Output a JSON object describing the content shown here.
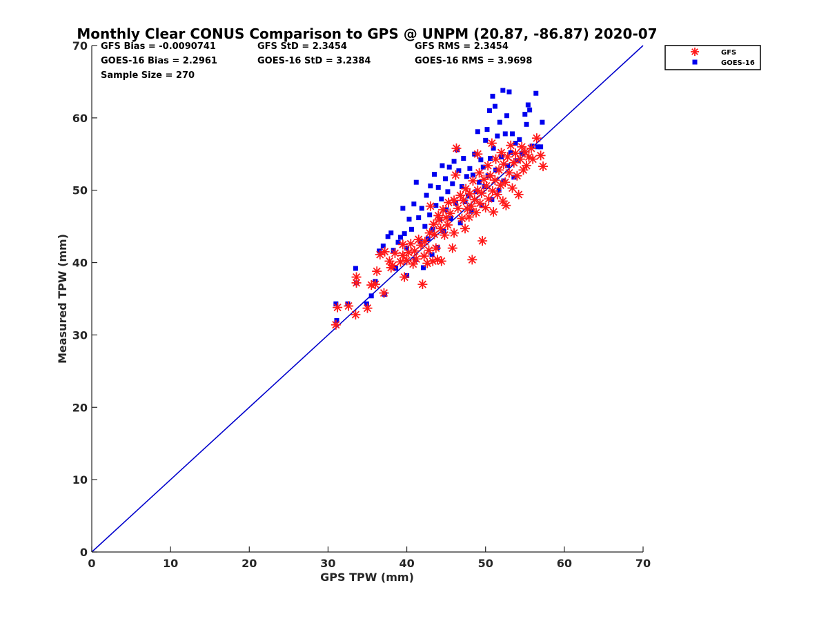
{
  "chart_data": {
    "type": "scatter",
    "title": "Monthly Clear CONUS Comparison to GPS @ UNPM (20.87, -86.87) 2020-07",
    "xlabel": "GPS TPW (mm)",
    "ylabel": "Measured TPW (mm)",
    "xlim": [
      0,
      70
    ],
    "ylim": [
      0,
      70
    ],
    "xticks": [
      "0",
      "10",
      "20",
      "30",
      "40",
      "50",
      "60",
      "70"
    ],
    "yticks": [
      "0",
      "10",
      "20",
      "30",
      "40",
      "50",
      "60",
      "70"
    ],
    "grid": false,
    "legend_position": "top-right",
    "stats": {
      "gfs_bias": "GFS Bias = -0.0090741",
      "gfs_std": "GFS StD = 2.3454",
      "gfs_rms": "GFS RMS = 2.3454",
      "goes_bias": "GOES-16 Bias = 2.2961",
      "goes_std": "GOES-16 StD = 3.2384",
      "goes_rms": "GOES-16 RMS = 3.9698",
      "sample_size": "Sample Size = 270"
    },
    "reference_line": {
      "x": [
        0,
        70
      ],
      "y": [
        0,
        70
      ],
      "color": "#0000cc"
    },
    "series": [
      {
        "name": "GFS",
        "marker": "asterisk",
        "color": "#ff1a1a",
        "points": [
          [
            31.0,
            31.4
          ],
          [
            31.2,
            33.8
          ],
          [
            32.6,
            34.0
          ],
          [
            33.5,
            32.8
          ],
          [
            33.6,
            37.2
          ],
          [
            33.6,
            38.0
          ],
          [
            35.0,
            33.7
          ],
          [
            35.5,
            36.9
          ],
          [
            36.0,
            37.0
          ],
          [
            36.2,
            38.8
          ],
          [
            36.6,
            41.1
          ],
          [
            37.1,
            35.8
          ],
          [
            37.2,
            41.5
          ],
          [
            37.8,
            40.2
          ],
          [
            38.0,
            39.3
          ],
          [
            38.2,
            39.6
          ],
          [
            38.5,
            41.3
          ],
          [
            39.2,
            40.1
          ],
          [
            39.5,
            41.0
          ],
          [
            39.5,
            42.5
          ],
          [
            39.7,
            38.0
          ],
          [
            40.0,
            40.3
          ],
          [
            40.2,
            41.4
          ],
          [
            40.5,
            42.6
          ],
          [
            40.8,
            39.8
          ],
          [
            41.0,
            41.6
          ],
          [
            41.2,
            40.5
          ],
          [
            41.5,
            43.2
          ],
          [
            41.8,
            42.4
          ],
          [
            42.0,
            37.0
          ],
          [
            42.2,
            40.9
          ],
          [
            42.3,
            42.9
          ],
          [
            42.6,
            39.9
          ],
          [
            42.8,
            41.7
          ],
          [
            42.9,
            44.1
          ],
          [
            43.0,
            47.8
          ],
          [
            43.3,
            40.2
          ],
          [
            43.4,
            45.3
          ],
          [
            43.5,
            43.9
          ],
          [
            43.7,
            42.0
          ],
          [
            43.9,
            40.4
          ],
          [
            44.0,
            46.5
          ],
          [
            44.1,
            45.9
          ],
          [
            44.3,
            44.7
          ],
          [
            44.4,
            40.2
          ],
          [
            44.6,
            47.3
          ],
          [
            44.8,
            43.8
          ],
          [
            45.0,
            46.2
          ],
          [
            45.2,
            45.2
          ],
          [
            45.3,
            48.3
          ],
          [
            45.5,
            46.8
          ],
          [
            45.8,
            42.0
          ],
          [
            46.0,
            44.1
          ],
          [
            46.0,
            48.6
          ],
          [
            46.2,
            52.1
          ],
          [
            46.3,
            55.8
          ],
          [
            46.5,
            47.5
          ],
          [
            46.8,
            49.3
          ],
          [
            47.0,
            46.1
          ],
          [
            47.2,
            48.6
          ],
          [
            47.4,
            44.7
          ],
          [
            47.5,
            50.2
          ],
          [
            47.7,
            47.4
          ],
          [
            47.9,
            46.3
          ],
          [
            48.0,
            49.5
          ],
          [
            48.2,
            47.8
          ],
          [
            48.3,
            40.4
          ],
          [
            48.4,
            51.3
          ],
          [
            48.6,
            48.7
          ],
          [
            48.8,
            46.9
          ],
          [
            49.0,
            50.0
          ],
          [
            49.0,
            55.0
          ],
          [
            49.2,
            52.4
          ],
          [
            49.3,
            48.2
          ],
          [
            49.5,
            49.6
          ],
          [
            49.6,
            43.0
          ],
          [
            49.8,
            51.5
          ],
          [
            50.0,
            47.6
          ],
          [
            50.1,
            50.6
          ],
          [
            50.3,
            53.4
          ],
          [
            50.4,
            48.8
          ],
          [
            50.6,
            52.0
          ],
          [
            50.8,
            56.5
          ],
          [
            50.9,
            49.9
          ],
          [
            51.0,
            47.0
          ],
          [
            51.2,
            51.4
          ],
          [
            51.3,
            54.3
          ],
          [
            51.5,
            49.4
          ],
          [
            51.7,
            52.8
          ],
          [
            51.9,
            50.7
          ],
          [
            52.0,
            55.2
          ],
          [
            52.2,
            48.5
          ],
          [
            52.3,
            53.6
          ],
          [
            52.5,
            51.1
          ],
          [
            52.6,
            47.9
          ],
          [
            52.8,
            54.6
          ],
          [
            53.0,
            52.4
          ],
          [
            53.2,
            56.2
          ],
          [
            53.4,
            50.3
          ],
          [
            53.6,
            53.8
          ],
          [
            53.8,
            55.1
          ],
          [
            54.0,
            52.0
          ],
          [
            54.2,
            49.4
          ],
          [
            54.4,
            54.3
          ],
          [
            54.6,
            56.0
          ],
          [
            54.8,
            52.8
          ],
          [
            55.0,
            55.3
          ],
          [
            55.2,
            53.4
          ],
          [
            55.5,
            54.6
          ],
          [
            55.8,
            55.8
          ],
          [
            56.0,
            54.3
          ],
          [
            56.5,
            57.2
          ],
          [
            57.0,
            54.8
          ],
          [
            57.3,
            53.3
          ]
        ]
      },
      {
        "name": "GOES-16",
        "marker": "square",
        "color": "#0000ee",
        "points": [
          [
            31.0,
            34.3
          ],
          [
            31.1,
            32.0
          ],
          [
            32.5,
            34.3
          ],
          [
            33.5,
            39.2
          ],
          [
            33.6,
            37.2
          ],
          [
            34.9,
            34.3
          ],
          [
            35.5,
            35.4
          ],
          [
            36.0,
            37.4
          ],
          [
            36.5,
            41.6
          ],
          [
            37.0,
            42.3
          ],
          [
            37.2,
            35.6
          ],
          [
            37.6,
            43.6
          ],
          [
            38.0,
            44.1
          ],
          [
            38.3,
            41.7
          ],
          [
            38.6,
            39.2
          ],
          [
            38.9,
            42.8
          ],
          [
            39.2,
            43.5
          ],
          [
            39.5,
            47.5
          ],
          [
            39.7,
            44.0
          ],
          [
            40.0,
            38.2
          ],
          [
            40.0,
            42.0
          ],
          [
            40.3,
            46.0
          ],
          [
            40.6,
            44.6
          ],
          [
            40.9,
            48.1
          ],
          [
            41.1,
            40.4
          ],
          [
            41.2,
            51.1
          ],
          [
            41.5,
            46.2
          ],
          [
            41.7,
            42.9
          ],
          [
            41.9,
            47.5
          ],
          [
            42.1,
            39.3
          ],
          [
            42.3,
            45.0
          ],
          [
            42.5,
            49.3
          ],
          [
            42.7,
            43.3
          ],
          [
            42.9,
            46.6
          ],
          [
            43.0,
            50.6
          ],
          [
            43.2,
            41.1
          ],
          [
            43.3,
            44.6
          ],
          [
            43.5,
            52.2
          ],
          [
            43.7,
            47.9
          ],
          [
            43.9,
            42.1
          ],
          [
            44.0,
            50.4
          ],
          [
            44.2,
            46.0
          ],
          [
            44.4,
            48.8
          ],
          [
            44.5,
            53.4
          ],
          [
            44.7,
            44.3
          ],
          [
            44.9,
            51.6
          ],
          [
            45.0,
            47.3
          ],
          [
            45.2,
            49.8
          ],
          [
            45.4,
            53.2
          ],
          [
            45.6,
            46.1
          ],
          [
            45.8,
            50.9
          ],
          [
            46.0,
            54.0
          ],
          [
            46.2,
            48.2
          ],
          [
            46.4,
            55.6
          ],
          [
            46.6,
            52.7
          ],
          [
            46.8,
            45.5
          ],
          [
            47.0,
            50.5
          ],
          [
            47.2,
            54.4
          ],
          [
            47.4,
            48.4
          ],
          [
            47.6,
            51.9
          ],
          [
            47.8,
            49.2
          ],
          [
            48.0,
            53.0
          ],
          [
            48.2,
            47.1
          ],
          [
            48.4,
            52.1
          ],
          [
            48.6,
            55.0
          ],
          [
            48.8,
            49.8
          ],
          [
            49.0,
            58.1
          ],
          [
            49.2,
            51.1
          ],
          [
            49.4,
            54.2
          ],
          [
            49.5,
            47.9
          ],
          [
            49.7,
            53.2
          ],
          [
            49.9,
            50.5
          ],
          [
            50.0,
            56.9
          ],
          [
            50.2,
            58.4
          ],
          [
            50.3,
            52.0
          ],
          [
            50.5,
            61.0
          ],
          [
            50.6,
            54.4
          ],
          [
            50.8,
            48.7
          ],
          [
            50.9,
            63.0
          ],
          [
            51.0,
            55.8
          ],
          [
            51.2,
            61.6
          ],
          [
            51.3,
            52.8
          ],
          [
            51.5,
            57.5
          ],
          [
            51.7,
            50.0
          ],
          [
            51.8,
            59.4
          ],
          [
            52.0,
            54.6
          ],
          [
            52.2,
            63.8
          ],
          [
            52.3,
            51.3
          ],
          [
            52.5,
            57.8
          ],
          [
            52.7,
            60.3
          ],
          [
            52.8,
            53.4
          ],
          [
            53.0,
            63.6
          ],
          [
            53.2,
            55.2
          ],
          [
            53.4,
            57.8
          ],
          [
            53.6,
            51.8
          ],
          [
            53.8,
            56.5
          ],
          [
            54.0,
            54.1
          ],
          [
            54.3,
            57.0
          ],
          [
            54.6,
            55.1
          ],
          [
            55.0,
            60.5
          ],
          [
            55.2,
            59.1
          ],
          [
            55.4,
            61.8
          ],
          [
            55.6,
            61.1
          ],
          [
            55.9,
            56.1
          ],
          [
            56.4,
            63.4
          ],
          [
            56.6,
            56.0
          ],
          [
            57.0,
            56.0
          ],
          [
            57.2,
            59.4
          ]
        ]
      }
    ]
  }
}
